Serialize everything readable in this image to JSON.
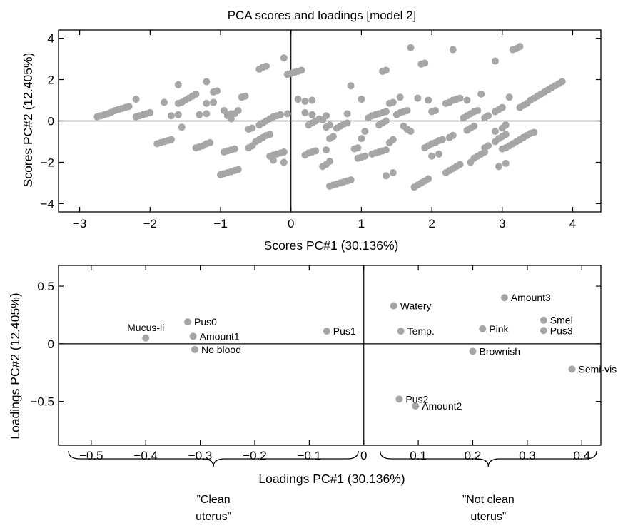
{
  "figure": {
    "title": "PCA scores and loadings [model 2]",
    "point_color": "#a6a6a6"
  },
  "chart_data": [
    {
      "type": "scatter",
      "xlabel": "Scores PC#1 (30.136%)",
      "ylabel": "Scores PC#2 (12.405%)",
      "xlim": [
        -3.3,
        4.4
      ],
      "ylim": [
        -4.4,
        4.4
      ],
      "xticks": [
        "−3",
        "−2",
        "−1",
        "0",
        "1",
        "2",
        "3",
        "4"
      ],
      "xtick_values": [
        -3,
        -2,
        -1,
        0,
        1,
        2,
        3,
        4
      ],
      "yticks": [
        "−4",
        "−2",
        "0",
        "2",
        "4"
      ],
      "ytick_values": [
        -4,
        -2,
        0,
        2,
        4
      ],
      "grid": false,
      "points": [
        [
          -2.75,
          0.2
        ],
        [
          -2.7,
          0.25
        ],
        [
          -2.65,
          0.3
        ],
        [
          -2.6,
          0.35
        ],
        [
          -2.55,
          0.42
        ],
        [
          -2.5,
          0.5
        ],
        [
          -2.45,
          0.55
        ],
        [
          -2.4,
          0.6
        ],
        [
          -2.35,
          0.65
        ],
        [
          -2.3,
          0.7
        ],
        [
          -2.2,
          1.05
        ],
        [
          -2.2,
          0.2
        ],
        [
          -2.15,
          0.25
        ],
        [
          -2.1,
          0.3
        ],
        [
          -2.05,
          0.35
        ],
        [
          -2.0,
          0.4
        ],
        [
          -1.9,
          -1.1
        ],
        [
          -1.85,
          -1.05
        ],
        [
          -1.8,
          -1.0
        ],
        [
          -1.75,
          -0.95
        ],
        [
          -1.7,
          -0.9
        ],
        [
          -1.8,
          0.9
        ],
        [
          -1.7,
          0.25
        ],
        [
          -1.6,
          0.3
        ],
        [
          -1.55,
          -0.3
        ],
        [
          -1.6,
          1.75
        ],
        [
          -1.6,
          0.85
        ],
        [
          -1.55,
          0.9
        ],
        [
          -1.5,
          1.0
        ],
        [
          -1.45,
          1.1
        ],
        [
          -1.4,
          1.2
        ],
        [
          -1.35,
          1.3
        ],
        [
          -1.35,
          -1.3
        ],
        [
          -1.3,
          -1.25
        ],
        [
          -1.25,
          -1.2
        ],
        [
          -1.2,
          -1.1
        ],
        [
          -1.15,
          -1.05
        ],
        [
          -1.3,
          0.3
        ],
        [
          -1.2,
          0.35
        ],
        [
          -1.2,
          0.85
        ],
        [
          -1.1,
          0.9
        ],
        [
          -1.2,
          1.9
        ],
        [
          -1.1,
          1.4
        ],
        [
          -1.05,
          1.45
        ],
        [
          -1.0,
          -2.6
        ],
        [
          -0.95,
          -2.55
        ],
        [
          -0.9,
          -2.5
        ],
        [
          -0.85,
          -2.45
        ],
        [
          -0.8,
          -2.4
        ],
        [
          -0.75,
          -2.35
        ],
        [
          -0.95,
          0.5
        ],
        [
          -0.85,
          0.1
        ],
        [
          -0.9,
          0.25
        ],
        [
          -0.8,
          0.35
        ],
        [
          -0.7,
          1.15
        ],
        [
          -0.65,
          1.2
        ],
        [
          -0.95,
          -1.5
        ],
        [
          -0.9,
          -1.45
        ],
        [
          -0.85,
          -1.4
        ],
        [
          -0.8,
          -1.35
        ],
        [
          -0.9,
          0.3
        ],
        [
          -0.85,
          0.35
        ],
        [
          -0.75,
          0.5
        ],
        [
          -0.6,
          -1.3
        ],
        [
          -0.55,
          -1.2
        ],
        [
          -0.5,
          -1.0
        ],
        [
          -0.45,
          -0.9
        ],
        [
          -0.4,
          -0.8
        ],
        [
          -0.35,
          -0.7
        ],
        [
          -0.3,
          -0.65
        ],
        [
          -0.6,
          -0.4
        ],
        [
          -0.55,
          -0.35
        ],
        [
          -0.45,
          -0.2
        ],
        [
          -0.4,
          -0.1
        ],
        [
          -0.35,
          0.0
        ],
        [
          -0.3,
          0.1
        ],
        [
          -0.45,
          2.5
        ],
        [
          -0.4,
          2.6
        ],
        [
          -0.35,
          2.65
        ],
        [
          -0.25,
          0.2
        ],
        [
          -0.2,
          0.25
        ],
        [
          -0.15,
          0.3
        ],
        [
          -0.3,
          -1.7
        ],
        [
          -0.25,
          -1.65
        ],
        [
          -0.2,
          -1.6
        ],
        [
          -0.15,
          -1.55
        ],
        [
          -0.1,
          -1.5
        ],
        [
          -0.25,
          -1.9
        ],
        [
          -0.1,
          -2.0
        ],
        [
          -0.1,
          3.05
        ],
        [
          -0.05,
          0.35
        ],
        [
          -0.05,
          2.25
        ],
        [
          0.0,
          2.3
        ],
        [
          0.05,
          2.35
        ],
        [
          0.1,
          2.4
        ],
        [
          0.15,
          2.45
        ],
        [
          0.1,
          1.05
        ],
        [
          0.2,
          0.4
        ],
        [
          0.25,
          -0.2
        ],
        [
          0.3,
          -0.1
        ],
        [
          0.2,
          0.95
        ],
        [
          0.3,
          1.0
        ],
        [
          0.2,
          -1.65
        ],
        [
          0.25,
          -1.55
        ],
        [
          0.3,
          -1.5
        ],
        [
          0.35,
          -1.45
        ],
        [
          0.3,
          0.3
        ],
        [
          0.35,
          0.0
        ],
        [
          0.4,
          0.1
        ],
        [
          0.45,
          0.05
        ],
        [
          0.5,
          -0.3
        ],
        [
          0.55,
          -0.2
        ],
        [
          0.5,
          0.25
        ],
        [
          0.5,
          -1.4
        ],
        [
          0.45,
          -2.2
        ],
        [
          0.5,
          -2.1
        ],
        [
          0.55,
          -1.95
        ],
        [
          0.55,
          -0.85
        ],
        [
          0.6,
          -0.75
        ],
        [
          0.55,
          -3.15
        ],
        [
          0.6,
          -3.1
        ],
        [
          0.65,
          -3.05
        ],
        [
          0.7,
          -3.0
        ],
        [
          0.75,
          -2.95
        ],
        [
          0.8,
          -2.9
        ],
        [
          0.85,
          -2.85
        ],
        [
          0.65,
          -0.35
        ],
        [
          0.7,
          -0.25
        ],
        [
          0.75,
          -0.15
        ],
        [
          0.8,
          0.35
        ],
        [
          0.8,
          -0.1
        ],
        [
          0.85,
          1.7
        ],
        [
          0.9,
          -1.35
        ],
        [
          0.95,
          -1.3
        ],
        [
          1.0,
          -0.85
        ],
        [
          1.05,
          -0.5
        ],
        [
          1.0,
          1.05
        ],
        [
          0.95,
          -1.8
        ],
        [
          1.0,
          -1.75
        ],
        [
          1.05,
          -1.7
        ],
        [
          1.1,
          0.15
        ],
        [
          1.15,
          0.25
        ],
        [
          1.2,
          0.3
        ],
        [
          1.25,
          0.35
        ],
        [
          1.3,
          0.4
        ],
        [
          1.35,
          0.45
        ],
        [
          1.15,
          -1.6
        ],
        [
          1.2,
          -1.55
        ],
        [
          1.25,
          -1.5
        ],
        [
          1.3,
          -1.45
        ],
        [
          1.35,
          -1.4
        ],
        [
          1.25,
          -0.2
        ],
        [
          1.3,
          -0.1
        ],
        [
          1.35,
          0.0
        ],
        [
          1.3,
          2.4
        ],
        [
          1.35,
          2.45
        ],
        [
          1.4,
          0.85
        ],
        [
          1.45,
          0.9
        ],
        [
          1.4,
          -1.05
        ],
        [
          1.45,
          -0.9
        ],
        [
          1.35,
          -2.65
        ],
        [
          1.45,
          -2.5
        ],
        [
          1.5,
          0.3
        ],
        [
          1.55,
          0.4
        ],
        [
          1.6,
          0.45
        ],
        [
          1.65,
          0.5
        ],
        [
          1.55,
          1.15
        ],
        [
          1.6,
          -0.25
        ],
        [
          1.65,
          -0.4
        ],
        [
          1.7,
          -0.5
        ],
        [
          1.7,
          3.55
        ],
        [
          1.75,
          -3.2
        ],
        [
          1.8,
          -3.1
        ],
        [
          1.85,
          -3.0
        ],
        [
          1.9,
          -2.9
        ],
        [
          1.95,
          -2.8
        ],
        [
          1.8,
          1.1
        ],
        [
          1.85,
          2.75
        ],
        [
          1.9,
          2.8
        ],
        [
          1.95,
          1.0
        ],
        [
          2.0,
          0.45
        ],
        [
          2.05,
          0.5
        ],
        [
          1.9,
          -1.3
        ],
        [
          1.95,
          -1.2
        ],
        [
          2.0,
          -1.1
        ],
        [
          2.05,
          -1.05
        ],
        [
          2.1,
          -0.95
        ],
        [
          2.15,
          -0.9
        ],
        [
          2.0,
          -1.7
        ],
        [
          2.1,
          -1.6
        ],
        [
          2.2,
          -2.5
        ],
        [
          2.25,
          -2.4
        ],
        [
          2.3,
          -2.3
        ],
        [
          2.35,
          -2.2
        ],
        [
          2.4,
          -2.1
        ],
        [
          2.2,
          0.85
        ],
        [
          2.25,
          0.9
        ],
        [
          2.3,
          1.0
        ],
        [
          2.35,
          1.05
        ],
        [
          2.4,
          1.1
        ],
        [
          2.3,
          3.45
        ],
        [
          2.25,
          -0.8
        ],
        [
          2.3,
          -0.7
        ],
        [
          2.45,
          0.15
        ],
        [
          2.5,
          0.25
        ],
        [
          2.55,
          0.35
        ],
        [
          2.6,
          0.45
        ],
        [
          2.65,
          0.5
        ],
        [
          2.55,
          -2.0
        ],
        [
          2.6,
          -1.8
        ],
        [
          2.65,
          -1.7
        ],
        [
          2.7,
          -1.6
        ],
        [
          2.75,
          -1.5
        ],
        [
          2.5,
          -0.45
        ],
        [
          2.55,
          -0.35
        ],
        [
          2.6,
          -0.25
        ],
        [
          2.5,
          1.0
        ],
        [
          2.7,
          1.3
        ],
        [
          2.9,
          2.9
        ],
        [
          2.75,
          0.15
        ],
        [
          2.8,
          0.25
        ],
        [
          2.9,
          0.45
        ],
        [
          2.95,
          0.55
        ],
        [
          3.0,
          0.65
        ],
        [
          2.75,
          -1.3
        ],
        [
          2.8,
          -1.2
        ],
        [
          2.9,
          -1.0
        ],
        [
          2.95,
          -0.85
        ],
        [
          3.0,
          -0.75
        ],
        [
          3.05,
          -0.65
        ],
        [
          2.9,
          -0.5
        ],
        [
          3.0,
          -0.35
        ],
        [
          3.05,
          -0.2
        ],
        [
          2.95,
          -2.2
        ],
        [
          3.05,
          -2.05
        ],
        [
          3.1,
          1.15
        ],
        [
          3.15,
          3.45
        ],
        [
          3.2,
          3.5
        ],
        [
          3.25,
          3.6
        ],
        [
          3.0,
          -1.35
        ],
        [
          3.05,
          -1.3
        ],
        [
          3.1,
          -1.2
        ],
        [
          3.15,
          -1.1
        ],
        [
          3.2,
          -1.0
        ],
        [
          3.25,
          -0.9
        ],
        [
          3.3,
          -0.8
        ],
        [
          3.35,
          -0.7
        ],
        [
          3.4,
          -0.6
        ],
        [
          3.45,
          -0.55
        ],
        [
          3.25,
          0.65
        ],
        [
          3.3,
          0.75
        ],
        [
          3.35,
          0.85
        ],
        [
          3.4,
          1.0
        ],
        [
          3.45,
          1.1
        ],
        [
          3.5,
          1.2
        ],
        [
          3.55,
          1.3
        ],
        [
          3.6,
          1.4
        ],
        [
          3.65,
          1.5
        ],
        [
          3.7,
          1.6
        ],
        [
          3.75,
          1.7
        ],
        [
          3.8,
          1.8
        ],
        [
          3.85,
          1.9
        ]
      ]
    },
    {
      "type": "scatter",
      "xlabel": "Loadings PC#1 (30.136%)",
      "ylabel": "Loadings PC#2 (12.405%)",
      "xlim": [
        -0.56,
        0.435
      ],
      "ylim": [
        -0.88,
        0.68
      ],
      "xticks": [
        "−0.5",
        "−0.4",
        "−0.3",
        "−0.2",
        "−0.1",
        "0",
        "0.1",
        "0.2",
        "0.3",
        "0.4"
      ],
      "xtick_values": [
        -0.5,
        -0.4,
        -0.3,
        -0.2,
        -0.1,
        0,
        0.1,
        0.2,
        0.3,
        0.4
      ],
      "yticks": [
        "0.5",
        "0",
        "−0.5"
      ],
      "ytick_values": [
        0.5,
        0,
        -0.5
      ],
      "grid": false,
      "points": [
        {
          "label": "Mucus-li",
          "x": -0.4,
          "y": 0.05,
          "label_pos": "above"
        },
        {
          "label": "Pus0",
          "x": -0.323,
          "y": 0.19,
          "label_pos": "right"
        },
        {
          "label": "Amount1",
          "x": -0.313,
          "y": 0.065,
          "label_pos": "right"
        },
        {
          "label": "No blood",
          "x": -0.31,
          "y": -0.05,
          "label_pos": "right"
        },
        {
          "label": "Pus1",
          "x": -0.068,
          "y": 0.11,
          "label_pos": "right"
        },
        {
          "label": "Watery",
          "x": 0.055,
          "y": 0.33,
          "label_pos": "right"
        },
        {
          "label": "Temp.",
          "x": 0.068,
          "y": 0.11,
          "label_pos": "right"
        },
        {
          "label": "Amount3",
          "x": 0.258,
          "y": 0.4,
          "label_pos": "right"
        },
        {
          "label": "Pink",
          "x": 0.218,
          "y": 0.13,
          "label_pos": "right"
        },
        {
          "label": "Smel",
          "x": 0.33,
          "y": 0.205,
          "label_pos": "right"
        },
        {
          "label": "Pus3",
          "x": 0.33,
          "y": 0.115,
          "label_pos": "right"
        },
        {
          "label": "Brownish",
          "x": 0.2,
          "y": -0.065,
          "label_pos": "right"
        },
        {
          "label": "Semi-vis",
          "x": 0.382,
          "y": -0.22,
          "label_pos": "right"
        },
        {
          "label": "Pus2",
          "x": 0.065,
          "y": -0.48,
          "label_pos": "right"
        },
        {
          "label": "Amount2",
          "x": 0.095,
          "y": -0.54,
          "label_pos": "right"
        }
      ],
      "annotations": [
        {
          "text": [
            "”Clean",
            "uterus”"
          ],
          "brace_from": -0.56,
          "brace_to": -0.01
        },
        {
          "text": [
            "”Not clean",
            "uterus”"
          ],
          "brace_from": 0.03,
          "brace_to": 0.435
        }
      ]
    }
  ]
}
